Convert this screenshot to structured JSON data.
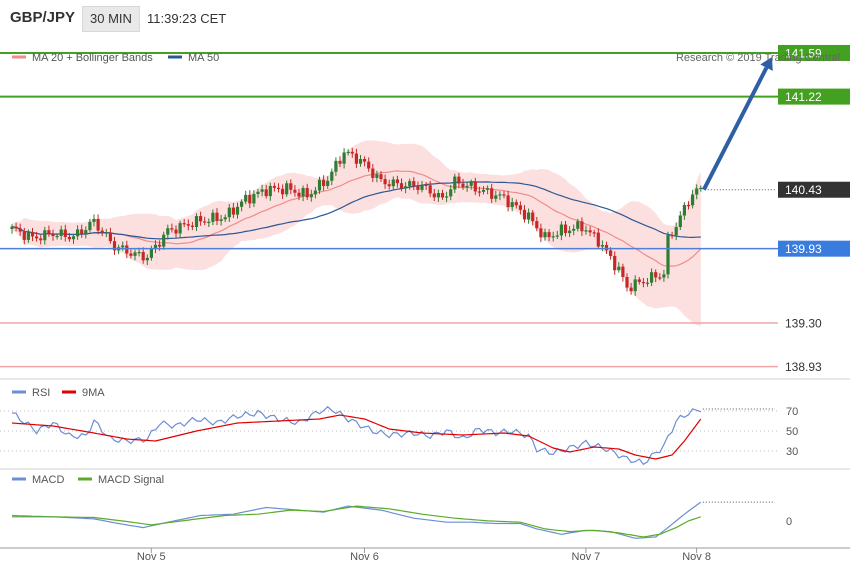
{
  "header": {
    "symbol": "GBP/JPY",
    "timeframe": "30 MIN",
    "time": "11:39:23 CET"
  },
  "colors": {
    "ma20": "#f28b8b",
    "ma50": "#2b5797",
    "bb_fill": "#fbdada",
    "candle_up": "#2e7d32",
    "candle_down": "#c62828",
    "resistance": "#43a020",
    "support_line": "#4f7fd6",
    "support_red": "#f2a5a5",
    "arrow": "#2e5ea6",
    "rsi": "#6b8ed6",
    "rsi_ma": "#e00000",
    "macd": "#6b8ed6",
    "macd_signal": "#5aab2a"
  },
  "chart_data": [
    {
      "type": "candlestick",
      "panel": "price",
      "legend": [
        "MA 20 + Bollinger Bands",
        "MA 50"
      ],
      "watermark": "Research © 2019 Trading Central",
      "ylim": [
        138.85,
        141.7
      ],
      "x_ticks": [
        {
          "label": "Nov 5",
          "index": 33
        },
        {
          "label": "Nov 6",
          "index": 85
        },
        {
          "label": "Nov 7",
          "index": 139
        },
        {
          "label": "Nov 8",
          "index": 166
        }
      ],
      "levels": [
        {
          "value": 141.59,
          "label": "141.59",
          "kind": "resistance"
        },
        {
          "value": 141.22,
          "label": "141.22",
          "kind": "resistance"
        },
        {
          "value": 140.43,
          "label": "140.43",
          "kind": "last"
        },
        {
          "value": 139.93,
          "label": "139.93",
          "kind": "pivot"
        },
        {
          "value": 139.3,
          "label": "139.30",
          "kind": "support"
        },
        {
          "value": 138.93,
          "label": "138.93",
          "kind": "support"
        }
      ],
      "last_price": 140.43,
      "key_points": [
        [
          0,
          140.1
        ],
        [
          5,
          140.02
        ],
        [
          10,
          140.06
        ],
        [
          15,
          140.03
        ],
        [
          20,
          140.16
        ],
        [
          25,
          139.95
        ],
        [
          30,
          139.88
        ],
        [
          33,
          139.86
        ],
        [
          38,
          140.08
        ],
        [
          45,
          140.16
        ],
        [
          52,
          140.2
        ],
        [
          57,
          140.35
        ],
        [
          62,
          140.43
        ],
        [
          67,
          140.44
        ],
        [
          72,
          140.38
        ],
        [
          77,
          140.52
        ],
        [
          81,
          140.75
        ],
        [
          85,
          140.68
        ],
        [
          90,
          140.5
        ],
        [
          95,
          140.47
        ],
        [
          100,
          140.46
        ],
        [
          105,
          140.35
        ],
        [
          108,
          140.5
        ],
        [
          114,
          140.43
        ],
        [
          120,
          140.36
        ],
        [
          126,
          140.2
        ],
        [
          130,
          140.02
        ],
        [
          134,
          140.08
        ],
        [
          139,
          140.12
        ],
        [
          143,
          140.0
        ],
        [
          148,
          139.75
        ],
        [
          150,
          139.6
        ],
        [
          155,
          139.67
        ],
        [
          159,
          139.72
        ],
        [
          160,
          140.0
        ],
        [
          163,
          140.2
        ],
        [
          166,
          140.4
        ],
        [
          168,
          140.43
        ]
      ],
      "arrow": {
        "from": [
          168,
          140.43
        ],
        "to": [
          185,
          141.59
        ]
      }
    },
    {
      "type": "line",
      "panel": "RSI",
      "legend": [
        "RSI",
        "9MA"
      ],
      "y_ticks": [
        70,
        50,
        30
      ],
      "ylim": [
        15,
        85
      ],
      "series_points": {
        "rsi": [
          [
            0,
            68
          ],
          [
            6,
            50
          ],
          [
            10,
            58
          ],
          [
            14,
            45
          ],
          [
            18,
            45
          ],
          [
            20,
            60
          ],
          [
            24,
            42
          ],
          [
            28,
            40
          ],
          [
            33,
            42
          ],
          [
            36,
            58
          ],
          [
            40,
            55
          ],
          [
            45,
            62
          ],
          [
            50,
            58
          ],
          [
            55,
            65
          ],
          [
            60,
            68
          ],
          [
            65,
            62
          ],
          [
            70,
            58
          ],
          [
            75,
            70
          ],
          [
            78,
            72
          ],
          [
            82,
            62
          ],
          [
            88,
            50
          ],
          [
            92,
            46
          ],
          [
            98,
            48
          ],
          [
            102,
            45
          ],
          [
            106,
            50
          ],
          [
            110,
            42
          ],
          [
            114,
            52
          ],
          [
            118,
            48
          ],
          [
            122,
            50
          ],
          [
            126,
            45
          ],
          [
            128,
            32
          ],
          [
            132,
            28
          ],
          [
            136,
            33
          ],
          [
            140,
            38
          ],
          [
            145,
            32
          ],
          [
            150,
            22
          ],
          [
            154,
            18
          ],
          [
            157,
            28
          ],
          [
            159,
            35
          ],
          [
            162,
            60
          ],
          [
            165,
            68
          ],
          [
            168,
            72
          ]
        ],
        "ma": [
          [
            0,
            58
          ],
          [
            10,
            55
          ],
          [
            20,
            48
          ],
          [
            28,
            42
          ],
          [
            35,
            40
          ],
          [
            45,
            50
          ],
          [
            55,
            58
          ],
          [
            65,
            60
          ],
          [
            75,
            62
          ],
          [
            80,
            66
          ],
          [
            86,
            62
          ],
          [
            92,
            52
          ],
          [
            100,
            48
          ],
          [
            110,
            46
          ],
          [
            120,
            48
          ],
          [
            126,
            45
          ],
          [
            132,
            33
          ],
          [
            136,
            29
          ],
          [
            142,
            34
          ],
          [
            148,
            32
          ],
          [
            152,
            26
          ],
          [
            157,
            22
          ],
          [
            161,
            26
          ],
          [
            164,
            40
          ],
          [
            168,
            62
          ]
        ]
      }
    },
    {
      "type": "line",
      "panel": "MACD",
      "legend": [
        "MACD",
        "MACD Signal"
      ],
      "y_ticks": [
        0
      ],
      "ylim": [
        -0.18,
        0.26
      ],
      "series_points": {
        "macd": [
          [
            0,
            0.04
          ],
          [
            10,
            0.03
          ],
          [
            20,
            0.015
          ],
          [
            26,
            -0.02
          ],
          [
            32,
            -0.05
          ],
          [
            38,
            -0.01
          ],
          [
            46,
            0.04
          ],
          [
            54,
            0.05
          ],
          [
            62,
            0.1
          ],
          [
            70,
            0.08
          ],
          [
            76,
            0.065
          ],
          [
            82,
            0.11
          ],
          [
            90,
            0.08
          ],
          [
            98,
            0.02
          ],
          [
            106,
            -0.01
          ],
          [
            112,
            -0.01
          ],
          [
            118,
            -0.02
          ],
          [
            124,
            -0.02
          ],
          [
            128,
            -0.06
          ],
          [
            134,
            -0.1
          ],
          [
            140,
            -0.07
          ],
          [
            146,
            -0.08
          ],
          [
            152,
            -0.13
          ],
          [
            157,
            -0.12
          ],
          [
            160,
            -0.05
          ],
          [
            164,
            0.05
          ],
          [
            168,
            0.14
          ]
        ],
        "signal": [
          [
            0,
            0.03
          ],
          [
            10,
            0.03
          ],
          [
            20,
            0.025
          ],
          [
            28,
            -0.005
          ],
          [
            34,
            -0.03
          ],
          [
            44,
            0.01
          ],
          [
            52,
            0.04
          ],
          [
            60,
            0.05
          ],
          [
            68,
            0.08
          ],
          [
            76,
            0.07
          ],
          [
            84,
            0.11
          ],
          [
            92,
            0.09
          ],
          [
            100,
            0.05
          ],
          [
            108,
            0.02
          ],
          [
            116,
            0.0
          ],
          [
            124,
            -0.01
          ],
          [
            130,
            -0.06
          ],
          [
            136,
            -0.08
          ],
          [
            142,
            -0.07
          ],
          [
            148,
            -0.09
          ],
          [
            154,
            -0.12
          ],
          [
            158,
            -0.1
          ],
          [
            162,
            -0.05
          ],
          [
            165,
            0.0
          ],
          [
            168,
            0.03
          ]
        ]
      }
    }
  ]
}
